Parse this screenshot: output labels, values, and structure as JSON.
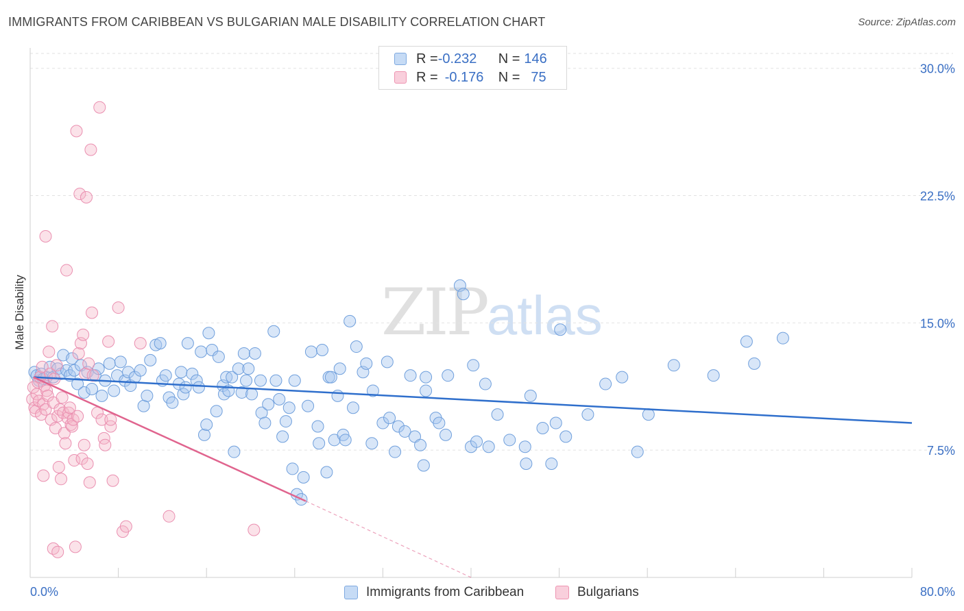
{
  "header": {
    "title": "IMMIGRANTS FROM CARIBBEAN VS BULGARIAN MALE DISABILITY CORRELATION CHART",
    "source": "Source: ZipAtlas.com"
  },
  "watermark": {
    "zip": "ZIP",
    "atlas": "atlas"
  },
  "legend_top": {
    "rows": [
      {
        "r_key": "R = ",
        "r_value": "-0.232",
        "n_key": "N = ",
        "n_value": "146",
        "color": "#a8c8f0"
      },
      {
        "r_key": "R = ",
        "r_value": "-0.176",
        "n_key": "N = ",
        "n_value": "75",
        "color": "#f6b6c9"
      }
    ]
  },
  "legend_bottom": {
    "items": [
      {
        "label": "Immigrants from Caribbean",
        "color": "#a8c8f0"
      },
      {
        "label": "Bulgarians",
        "color": "#f6b6c9"
      }
    ]
  },
  "chart_data": {
    "type": "scatter",
    "title": "IMMIGRANTS FROM CARIBBEAN VS BULGARIAN MALE DISABILITY CORRELATION CHART",
    "xlabel": "",
    "ylabel": "Male Disability",
    "xlim": [
      0,
      80
    ],
    "ylim": [
      0,
      31.2
    ],
    "x_tick_labels": [
      "0.0%",
      "80.0%"
    ],
    "y_ticks": [
      7.5,
      15.0,
      22.5,
      30.0
    ],
    "y_tick_labels": [
      "7.5%",
      "15.0%",
      "22.5%",
      "30.0%"
    ],
    "grid": true,
    "legend_position": "top-center",
    "colors": {
      "blue_fill": "#a8c8f0",
      "blue_line": "#2f6fcc",
      "pink_fill": "#f6b6c9",
      "pink_line": "#e0648e",
      "grid": "#e2e2e2"
    },
    "series": [
      {
        "name": "Immigrants from Caribbean",
        "r": -0.232,
        "n": 146,
        "trend": {
          "x0": 0.3,
          "y0": 11.8,
          "x1": 80,
          "y1": 9.1
        },
        "points": [
          [
            0.4,
            12.1
          ],
          [
            0.6,
            11.9
          ],
          [
            0.8,
            11.6
          ],
          [
            1.0,
            12.0
          ],
          [
            1.2,
            11.7
          ],
          [
            1.5,
            11.8
          ],
          [
            1.8,
            12.4
          ],
          [
            2.1,
            11.8
          ],
          [
            2.5,
            12.3
          ],
          [
            2.8,
            12.0
          ],
          [
            3.0,
            13.1
          ],
          [
            3.3,
            12.2
          ],
          [
            3.6,
            11.9
          ],
          [
            3.8,
            12.9
          ],
          [
            4.0,
            12.2
          ],
          [
            4.3,
            11.4
          ],
          [
            4.6,
            12.5
          ],
          [
            4.9,
            10.9
          ],
          [
            5.2,
            12.1
          ],
          [
            5.6,
            11.1
          ],
          [
            5.9,
            11.9
          ],
          [
            6.2,
            12.3
          ],
          [
            6.5,
            10.7
          ],
          [
            6.8,
            11.6
          ],
          [
            7.2,
            12.6
          ],
          [
            7.6,
            11.0
          ],
          [
            7.9,
            11.9
          ],
          [
            8.2,
            12.7
          ],
          [
            8.6,
            11.6
          ],
          [
            8.9,
            12.1
          ],
          [
            9.1,
            11.3
          ],
          [
            9.5,
            11.8
          ],
          [
            10.0,
            12.2
          ],
          [
            10.3,
            10.1
          ],
          [
            10.6,
            10.7
          ],
          [
            10.9,
            12.8
          ],
          [
            11.4,
            13.7
          ],
          [
            11.8,
            13.8
          ],
          [
            12.0,
            11.6
          ],
          [
            12.3,
            11.9
          ],
          [
            12.6,
            10.6
          ],
          [
            12.9,
            10.3
          ],
          [
            13.5,
            11.4
          ],
          [
            13.7,
            12.1
          ],
          [
            13.9,
            10.8
          ],
          [
            14.1,
            11.2
          ],
          [
            14.3,
            13.8
          ],
          [
            14.7,
            12.0
          ],
          [
            15.1,
            11.6
          ],
          [
            15.3,
            11.2
          ],
          [
            15.5,
            13.3
          ],
          [
            15.8,
            8.4
          ],
          [
            16.0,
            9.0
          ],
          [
            16.2,
            14.4
          ],
          [
            16.5,
            13.4
          ],
          [
            16.9,
            9.8
          ],
          [
            17.1,
            13.0
          ],
          [
            17.5,
            11.3
          ],
          [
            17.6,
            10.8
          ],
          [
            17.8,
            11.8
          ],
          [
            18.0,
            11.0
          ],
          [
            18.3,
            11.8
          ],
          [
            18.5,
            7.4
          ],
          [
            18.9,
            12.3
          ],
          [
            19.2,
            10.9
          ],
          [
            19.4,
            13.2
          ],
          [
            19.6,
            11.6
          ],
          [
            19.8,
            12.3
          ],
          [
            20.1,
            10.8
          ],
          [
            20.4,
            13.2
          ],
          [
            20.9,
            11.6
          ],
          [
            21.0,
            9.7
          ],
          [
            21.3,
            9.1
          ],
          [
            21.6,
            10.2
          ],
          [
            22.1,
            14.5
          ],
          [
            22.3,
            11.6
          ],
          [
            22.6,
            10.5
          ],
          [
            22.9,
            8.3
          ],
          [
            23.2,
            9.2
          ],
          [
            23.5,
            10.0
          ],
          [
            23.8,
            6.4
          ],
          [
            24.0,
            11.6
          ],
          [
            24.2,
            4.9
          ],
          [
            24.6,
            4.6
          ],
          [
            24.8,
            5.9
          ],
          [
            25.2,
            10.1
          ],
          [
            25.5,
            13.3
          ],
          [
            26.1,
            8.9
          ],
          [
            26.2,
            7.9
          ],
          [
            26.5,
            13.4
          ],
          [
            26.9,
            6.2
          ],
          [
            27.1,
            11.8
          ],
          [
            27.3,
            11.8
          ],
          [
            27.6,
            8.1
          ],
          [
            27.9,
            10.7
          ],
          [
            28.1,
            12.3
          ],
          [
            28.4,
            8.4
          ],
          [
            28.6,
            8.1
          ],
          [
            29.0,
            15.1
          ],
          [
            29.3,
            10.0
          ],
          [
            29.6,
            13.6
          ],
          [
            30.2,
            12.1
          ],
          [
            30.5,
            12.6
          ],
          [
            31.0,
            7.9
          ],
          [
            31.1,
            11.0
          ],
          [
            32.0,
            9.1
          ],
          [
            32.4,
            12.7
          ],
          [
            32.6,
            9.4
          ],
          [
            33.1,
            7.4
          ],
          [
            33.4,
            8.9
          ],
          [
            34.0,
            8.6
          ],
          [
            34.9,
            8.3
          ],
          [
            34.5,
            11.9
          ],
          [
            35.4,
            7.8
          ],
          [
            35.7,
            6.6
          ],
          [
            35.9,
            11.0
          ],
          [
            35.9,
            11.8
          ],
          [
            36.8,
            9.4
          ],
          [
            37.1,
            9.1
          ],
          [
            37.7,
            8.4
          ],
          [
            37.9,
            11.9
          ],
          [
            39.0,
            17.2
          ],
          [
            39.3,
            16.7
          ],
          [
            40.0,
            7.7
          ],
          [
            40.2,
            12.5
          ],
          [
            40.5,
            8.0
          ],
          [
            41.3,
            11.4
          ],
          [
            41.6,
            7.7
          ],
          [
            42.4,
            9.6
          ],
          [
            43.5,
            8.1
          ],
          [
            44.9,
            7.7
          ],
          [
            45.0,
            6.7
          ],
          [
            45.4,
            10.7
          ],
          [
            46.5,
            8.8
          ],
          [
            47.3,
            6.7
          ],
          [
            47.7,
            9.1
          ],
          [
            48.1,
            14.6
          ],
          [
            48.6,
            8.3
          ],
          [
            50.6,
            9.6
          ],
          [
            52.2,
            11.4
          ],
          [
            53.7,
            11.8
          ],
          [
            55.1,
            7.4
          ],
          [
            56.1,
            9.6
          ],
          [
            58.4,
            12.5
          ],
          [
            62.0,
            11.9
          ],
          [
            65.0,
            13.9
          ],
          [
            65.7,
            12.6
          ],
          [
            68.3,
            14.1
          ]
        ]
      },
      {
        "name": "Bulgarians",
        "r": -0.176,
        "n": 75,
        "trend": {
          "x0": 0.3,
          "y0": 11.8,
          "x1": 25.0,
          "y1": 4.5
        },
        "trend_dashed_extension": {
          "x0": 25.0,
          "y0": 4.5,
          "x1": 40.0,
          "y1": 0.0
        },
        "points": [
          [
            0.2,
            10.5
          ],
          [
            0.3,
            11.2
          ],
          [
            0.4,
            10.0
          ],
          [
            0.5,
            9.8
          ],
          [
            0.6,
            10.8
          ],
          [
            0.7,
            11.5
          ],
          [
            0.8,
            10.4
          ],
          [
            0.9,
            11.8
          ],
          [
            1.0,
            9.6
          ],
          [
            1.1,
            12.4
          ],
          [
            1.2,
            10.2
          ],
          [
            1.3,
            11.3
          ],
          [
            1.4,
            9.9
          ],
          [
            1.5,
            11.0
          ],
          [
            1.6,
            10.7
          ],
          [
            1.7,
            13.3
          ],
          [
            1.8,
            12.0
          ],
          [
            1.9,
            9.3
          ],
          [
            2.0,
            14.8
          ],
          [
            2.1,
            10.3
          ],
          [
            2.2,
            11.7
          ],
          [
            2.3,
            8.8
          ],
          [
            2.4,
            12.5
          ],
          [
            2.5,
            9.5
          ],
          [
            2.6,
            6.5
          ],
          [
            2.7,
            9.9
          ],
          [
            2.8,
            5.8
          ],
          [
            2.9,
            10.6
          ],
          [
            3.0,
            9.7
          ],
          [
            3.1,
            8.5
          ],
          [
            3.2,
            7.9
          ],
          [
            3.3,
            18.1
          ],
          [
            3.4,
            9.4
          ],
          [
            3.5,
            9.7
          ],
          [
            3.6,
            10.0
          ],
          [
            3.7,
            9.0
          ],
          [
            3.8,
            8.9
          ],
          [
            3.9,
            9.3
          ],
          [
            4.0,
            6.9
          ],
          [
            4.2,
            26.3
          ],
          [
            4.3,
            9.5
          ],
          [
            4.4,
            13.2
          ],
          [
            4.5,
            22.6
          ],
          [
            4.6,
            13.8
          ],
          [
            4.7,
            7.0
          ],
          [
            4.8,
            14.3
          ],
          [
            4.9,
            7.8
          ],
          [
            5.0,
            12.0
          ],
          [
            5.1,
            22.4
          ],
          [
            5.2,
            6.7
          ],
          [
            5.3,
            12.6
          ],
          [
            5.4,
            5.6
          ],
          [
            5.5,
            25.2
          ],
          [
            5.6,
            15.6
          ],
          [
            5.7,
            11.9
          ],
          [
            6.1,
            9.7
          ],
          [
            6.3,
            27.7
          ],
          [
            6.5,
            9.3
          ],
          [
            6.7,
            8.2
          ],
          [
            6.8,
            7.8
          ],
          [
            7.1,
            13.9
          ],
          [
            7.3,
            8.9
          ],
          [
            7.5,
            5.7
          ],
          [
            7.3,
            9.3
          ],
          [
            8.0,
            15.9
          ],
          [
            8.4,
            2.7
          ],
          [
            8.7,
            3.0
          ],
          [
            10.0,
            13.8
          ],
          [
            12.6,
            3.6
          ],
          [
            20.3,
            2.8
          ],
          [
            1.4,
            20.1
          ],
          [
            1.2,
            6.0
          ],
          [
            2.1,
            1.7
          ],
          [
            2.5,
            1.5
          ],
          [
            4.1,
            1.8
          ]
        ]
      }
    ]
  }
}
